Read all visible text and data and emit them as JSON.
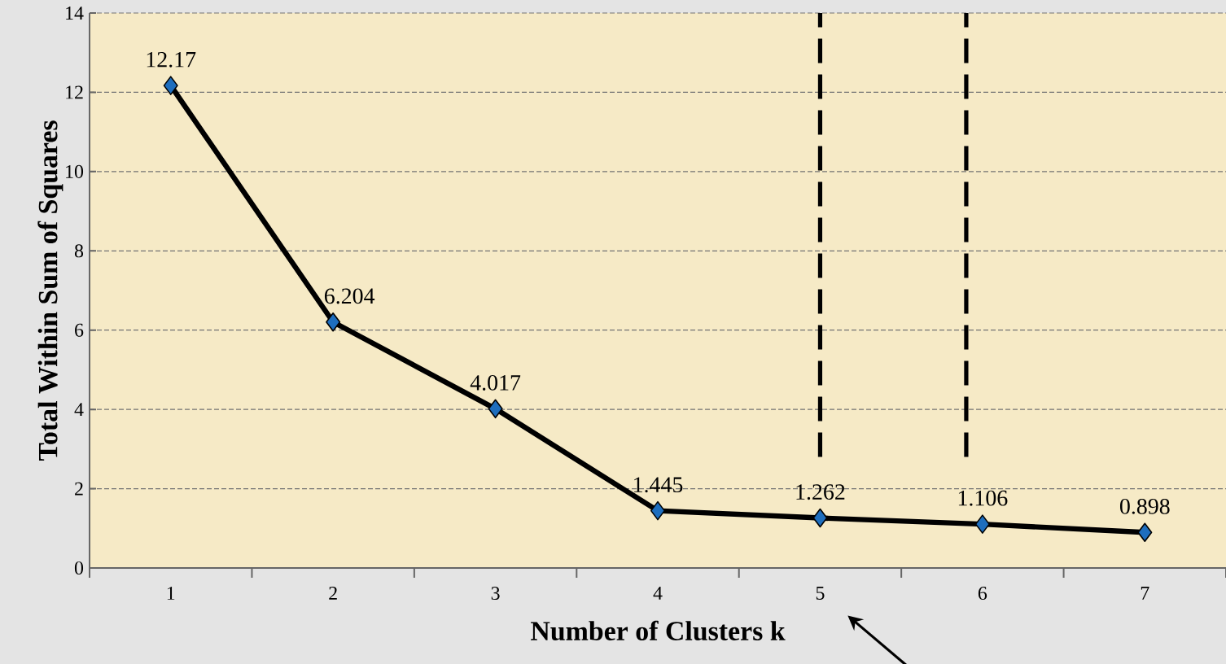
{
  "chart_data": {
    "type": "line",
    "xlabel": "Number of Clusters  k",
    "ylabel": "Total Within Sum of Squares",
    "x": [
      1,
      2,
      3,
      4,
      5,
      6,
      7
    ],
    "series": [
      {
        "color": "#000000",
        "values": [
          12.17,
          6.204,
          4.017,
          1.445,
          1.262,
          1.106,
          0.898
        ]
      }
    ],
    "xlim": [
      0.5,
      7.5
    ],
    "xticks": [
      1,
      2,
      3,
      4,
      5,
      6,
      7,
      {
        "value": 0.5,
        "label": null
      },
      {
        "value": 1.5,
        "label": null
      },
      {
        "value": 2.5,
        "label": null
      },
      {
        "value": 3.5,
        "label": null
      },
      {
        "value": 4.5,
        "label": null
      },
      {
        "value": 5.5,
        "label": null
      },
      {
        "value": 6.5,
        "label": null
      },
      {
        "value": 7.5,
        "label": null
      }
    ],
    "ylim": [
      0,
      14
    ],
    "yticks": [
      0,
      2,
      4,
      6,
      8,
      10,
      12,
      14
    ],
    "grid": "y",
    "marker": "diamond",
    "line_style": "solid",
    "data_labels": true,
    "ref_lines": [
      {
        "axis": "x",
        "value": 5,
        "color": "#000000",
        "line_style": "dashed"
      },
      {
        "axis": "x",
        "value": 5.9,
        "color": "#000000",
        "line_style": "dashed"
      }
    ]
  }
}
